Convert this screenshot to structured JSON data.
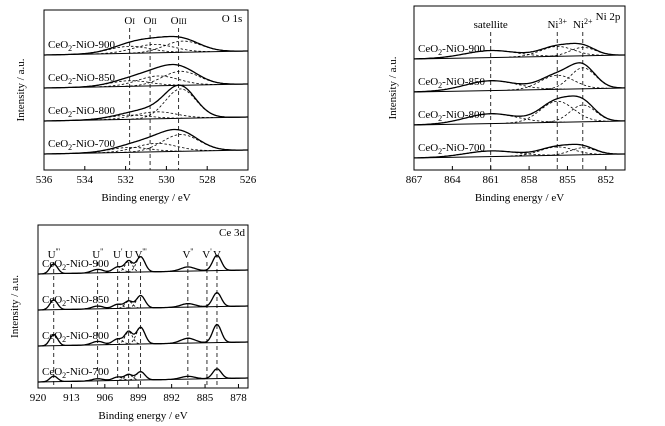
{
  "chart_data": [
    {
      "id": "o1s",
      "type": "line",
      "title": "O 1s",
      "xlabel": "Binding energy / eV",
      "ylabel": "Intensity / a.u.",
      "xlim": [
        536,
        526
      ],
      "xticks": [
        536,
        534,
        532,
        530,
        528,
        526
      ],
      "grid": false,
      "series": [
        {
          "name": "CeO2-NiO-900",
          "label_main": "CeO",
          "label_sub": "2",
          "label_rest": "-NiO-900",
          "peaks": [
            {
              "c": 531.8,
              "a": 0.1,
              "w": 1.0
            },
            {
              "c": 530.6,
              "a": 0.12,
              "w": 1.0
            },
            {
              "c": 529.2,
              "a": 0.16,
              "w": 0.9
            }
          ]
        },
        {
          "name": "CeO2-NiO-850",
          "label_main": "CeO",
          "label_sub": "2",
          "label_rest": "-NiO-850",
          "peaks": [
            {
              "c": 531.8,
              "a": 0.08,
              "w": 1.0
            },
            {
              "c": 530.4,
              "a": 0.14,
              "w": 1.0
            },
            {
              "c": 529.3,
              "a": 0.2,
              "w": 0.9
            }
          ]
        },
        {
          "name": "CeO2-NiO-800",
          "label_main": "CeO",
          "label_sub": "2",
          "label_rest": "-NiO-800",
          "peaks": [
            {
              "c": 531.8,
              "a": 0.06,
              "w": 1.0
            },
            {
              "c": 530.5,
              "a": 0.1,
              "w": 1.0
            },
            {
              "c": 529.3,
              "a": 0.42,
              "w": 0.75
            }
          ]
        },
        {
          "name": "CeO2-NiO-700",
          "label_main": "CeO",
          "label_sub": "2",
          "label_rest": "-NiO-700",
          "peaks": [
            {
              "c": 531.8,
              "a": 0.07,
              "w": 1.0
            },
            {
              "c": 530.5,
              "a": 0.12,
              "w": 1.0
            },
            {
              "c": 529.3,
              "a": 0.24,
              "w": 0.9
            }
          ]
        }
      ],
      "reference_lines": [
        {
          "x": 531.8,
          "label": "O",
          "label_sub": "I"
        },
        {
          "x": 530.8,
          "label": "O",
          "label_sub": "II"
        },
        {
          "x": 529.4,
          "label": "O",
          "label_sub": "III"
        }
      ]
    },
    {
      "id": "ni2p",
      "type": "line",
      "title": "Ni 2p",
      "xlabel": "Binding energy / eV",
      "ylabel": "Intensity / a.u.",
      "xlim": [
        867,
        850.5
      ],
      "xticks": [
        867,
        864,
        861,
        858,
        855,
        852
      ],
      "grid": false,
      "series": [
        {
          "name": "CeO2-NiO-900",
          "label_main": "CeO",
          "label_sub": "2",
          "label_rest": "-NiO-900",
          "peaks": [
            {
              "c": 861.0,
              "a": 0.1,
              "w": 2.0
            },
            {
              "c": 855.8,
              "a": 0.14,
              "w": 1.3
            },
            {
              "c": 853.8,
              "a": 0.12,
              "w": 1.0
            }
          ]
        },
        {
          "name": "CeO2-NiO-850",
          "label_main": "CeO",
          "label_sub": "2",
          "label_rest": "-NiO-850",
          "peaks": [
            {
              "c": 861.0,
              "a": 0.14,
              "w": 2.0
            },
            {
              "c": 855.8,
              "a": 0.2,
              "w": 1.3
            },
            {
              "c": 853.8,
              "a": 0.3,
              "w": 1.0
            }
          ]
        },
        {
          "name": "CeO2-NiO-800",
          "label_main": "CeO",
          "label_sub": "2",
          "label_rest": "-NiO-800",
          "peaks": [
            {
              "c": 861.0,
              "a": 0.14,
              "w": 2.0
            },
            {
              "c": 855.8,
              "a": 0.3,
              "w": 1.3
            },
            {
              "c": 853.8,
              "a": 0.24,
              "w": 1.0
            }
          ]
        },
        {
          "name": "CeO2-NiO-700",
          "label_main": "CeO",
          "label_sub": "2",
          "label_rest": "-NiO-700",
          "peaks": [
            {
              "c": 861.0,
              "a": 0.08,
              "w": 2.0
            },
            {
              "c": 855.8,
              "a": 0.12,
              "w": 1.3
            },
            {
              "c": 853.8,
              "a": 0.1,
              "w": 1.0
            }
          ]
        }
      ],
      "reference_lines": [
        {
          "x": 861.0,
          "label": "satellite",
          "label_sub": "",
          "label_sup": ""
        },
        {
          "x": 855.8,
          "label": "Ni",
          "label_sub": "",
          "label_sup": "3+"
        },
        {
          "x": 853.8,
          "label": "Ni",
          "label_sub": "",
          "label_sup": "2+"
        }
      ]
    },
    {
      "id": "ce3d",
      "type": "line",
      "title": "Ce 3d",
      "xlabel": "Binding energy / eV",
      "ylabel": "Intensity / a.u.",
      "xlim": [
        920,
        876
      ],
      "xticks": [
        920,
        913,
        906,
        899,
        892,
        885,
        878
      ],
      "grid": false,
      "series": [
        {
          "name": "CeO2-NiO-900",
          "label_main": "CeO",
          "label_sub": "2",
          "label_rest": "-NiO-900",
          "peaks": [
            {
              "c": 916.7,
              "a": 0.14,
              "w": 0.8
            },
            {
              "c": 907.5,
              "a": 0.05,
              "w": 1.2
            },
            {
              "c": 903.3,
              "a": 0.08,
              "w": 1.0
            },
            {
              "c": 901.0,
              "a": 0.16,
              "w": 0.8
            },
            {
              "c": 898.5,
              "a": 0.22,
              "w": 0.9
            },
            {
              "c": 888.6,
              "a": 0.06,
              "w": 1.5
            },
            {
              "c": 882.5,
              "a": 0.22,
              "w": 0.9
            }
          ]
        },
        {
          "name": "CeO2-NiO-850",
          "label_main": "CeO",
          "label_sub": "2",
          "label_rest": "-NiO-850",
          "peaks": [
            {
              "c": 916.7,
              "a": 0.14,
              "w": 0.8
            },
            {
              "c": 907.5,
              "a": 0.04,
              "w": 1.2
            },
            {
              "c": 903.3,
              "a": 0.06,
              "w": 1.0
            },
            {
              "c": 901.0,
              "a": 0.1,
              "w": 0.8
            },
            {
              "c": 898.5,
              "a": 0.18,
              "w": 0.9
            },
            {
              "c": 888.6,
              "a": 0.05,
              "w": 1.5
            },
            {
              "c": 882.5,
              "a": 0.2,
              "w": 0.9
            }
          ]
        },
        {
          "name": "CeO2-NiO-800",
          "label_main": "CeO",
          "label_sub": "2",
          "label_rest": "-NiO-800",
          "peaks": [
            {
              "c": 916.7,
              "a": 0.16,
              "w": 0.8
            },
            {
              "c": 907.5,
              "a": 0.05,
              "w": 1.2
            },
            {
              "c": 903.3,
              "a": 0.08,
              "w": 1.0
            },
            {
              "c": 901.0,
              "a": 0.18,
              "w": 0.8
            },
            {
              "c": 898.5,
              "a": 0.24,
              "w": 0.9
            },
            {
              "c": 888.6,
              "a": 0.07,
              "w": 1.5
            },
            {
              "c": 882.5,
              "a": 0.26,
              "w": 0.9
            }
          ]
        },
        {
          "name": "CeO2-NiO-700",
          "label_main": "CeO",
          "label_sub": "2",
          "label_rest": "-NiO-700",
          "peaks": [
            {
              "c": 916.7,
              "a": 0.08,
              "w": 0.8
            },
            {
              "c": 907.5,
              "a": 0.03,
              "w": 1.2
            },
            {
              "c": 903.3,
              "a": 0.05,
              "w": 1.0
            },
            {
              "c": 901.0,
              "a": 0.08,
              "w": 0.8
            },
            {
              "c": 898.5,
              "a": 0.12,
              "w": 0.9
            },
            {
              "c": 888.6,
              "a": 0.04,
              "w": 1.5
            },
            {
              "c": 882.5,
              "a": 0.14,
              "w": 0.9
            }
          ]
        }
      ],
      "reference_lines": [
        {
          "x": 916.7,
          "label": "U",
          "label_sup": "'''"
        },
        {
          "x": 907.5,
          "label": "U",
          "label_sup": "''"
        },
        {
          "x": 903.3,
          "label": "U",
          "label_sup": "'"
        },
        {
          "x": 901.0,
          "label": "U",
          "label_sup": ""
        },
        {
          "x": 898.5,
          "label": "V",
          "label_sup": "'''"
        },
        {
          "x": 888.6,
          "label": "V",
          "label_sup": "''"
        },
        {
          "x": 884.6,
          "label": "V",
          "label_sup": "'"
        },
        {
          "x": 882.5,
          "label": "V",
          "label_sup": ""
        }
      ]
    }
  ]
}
